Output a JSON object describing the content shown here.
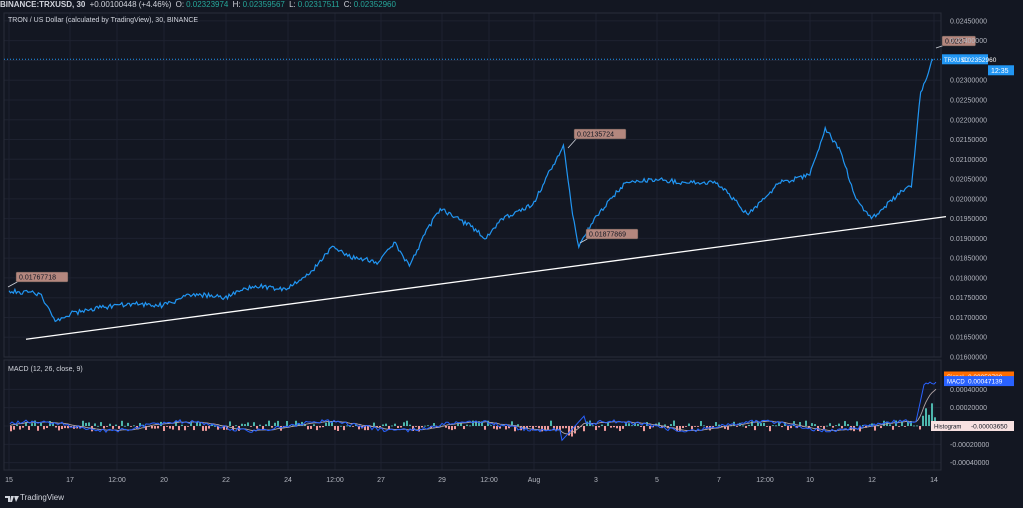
{
  "header": {
    "symbol": "BINANCE:TRXUSD, 30",
    "change": "+0.00100448 (+4.46%)",
    "o_label": "O:",
    "o_value": "0.02323974",
    "h_label": "H:",
    "h_value": "0.02359567",
    "l_label": "L:",
    "l_value": "0.02317511",
    "c_label": "C:",
    "c_value": "0.02352960"
  },
  "footer": {
    "brand": "TradingView"
  },
  "colors": {
    "background": "#131722",
    "price_line": "#2196f3",
    "trend_line": "#ffffff",
    "grid": "#1e2230",
    "callout": "#b4877e",
    "macd_line": "#2962ff",
    "signal_line": "#ff6d00",
    "hist_pos": "#4db6ac",
    "hist_neg": "#ef9a9a"
  },
  "chart_data": [
    {
      "type": "line",
      "title": "TRON / US Dollar (calculated by TradingView), 30, BINANCE",
      "ylim": [
        0.016,
        0.0247
      ],
      "x_ticks": [
        "15",
        "17",
        "12:00",
        "20",
        "22",
        "24",
        "12:00",
        "27",
        "29",
        "12:00",
        "Aug",
        "3",
        "5",
        "7",
        "12:00",
        "10",
        "12",
        "14"
      ],
      "y_ticks": [
        "0.02450000",
        "0.02400000",
        "0.02350000",
        "0.02300000",
        "0.02250000",
        "0.02200000",
        "0.02150000",
        "0.02100000",
        "0.02050000",
        "0.02000000",
        "0.01950000",
        "0.01900000",
        "0.01850000",
        "0.01800000",
        "0.01750000",
        "0.01700000",
        "0.01650000",
        "0.01600000"
      ],
      "series": [
        {
          "x": [
            "15",
            "16",
            "16.5",
            "17",
            "18",
            "19",
            "20",
            "21",
            "22",
            "23",
            "24",
            "25",
            "25.5",
            "26",
            "27",
            "27.5",
            "28",
            "28.5",
            "29",
            "30",
            "30.5",
            "31",
            "Aug",
            "2",
            "2.3",
            "2.5",
            "3",
            "4",
            "5",
            "6",
            "7",
            "8",
            "9",
            "10",
            "10.5",
            "11",
            "11.5",
            "12",
            "13",
            "13.3",
            "13.6",
            "14"
          ],
          "values": [
            0.01767718,
            0.0176,
            0.0169,
            0.0171,
            0.01725,
            0.01735,
            0.0173,
            0.0176,
            0.0175,
            0.0178,
            0.0177,
            0.0183,
            0.0188,
            0.01855,
            0.0184,
            0.0189,
            0.0183,
            0.0191,
            0.01975,
            0.0193,
            0.019,
            0.0195,
            0.01985,
            0.02135724,
            0.0196,
            0.01877869,
            0.0195,
            0.0204,
            0.0205,
            0.0204,
            0.0204,
            0.0196,
            0.0204,
            0.0206,
            0.0218,
            0.0212,
            0.02,
            0.0195,
            0.0202,
            0.0203,
            0.0227,
            0.0235296
          ]
        }
      ],
      "trend_line": {
        "x": [
          "16.5",
          "14"
        ],
        "values": [
          0.01645,
          0.01955
        ]
      },
      "callouts": [
        "0.01767718",
        "0.02135724",
        "0.01877869",
        "0.0237"
      ],
      "last_price_label": "TRXUSD",
      "last_price_value": "0.02352960",
      "countdown": "12:35"
    },
    {
      "type": "line",
      "title": "MACD (12, 26, close, 9)",
      "ylim": [
        -0.00048,
        0.00072
      ],
      "y_ticks": [
        "0.00040000",
        "0.00020000",
        "0.00000000",
        "-0.00020000",
        "-0.00040000"
      ],
      "series": [
        {
          "name": "Signal",
          "last": "0.00050789"
        },
        {
          "name": "MACD",
          "last": "0.00047139"
        },
        {
          "name": "Histogram",
          "last": "-0.00003650"
        }
      ]
    }
  ]
}
